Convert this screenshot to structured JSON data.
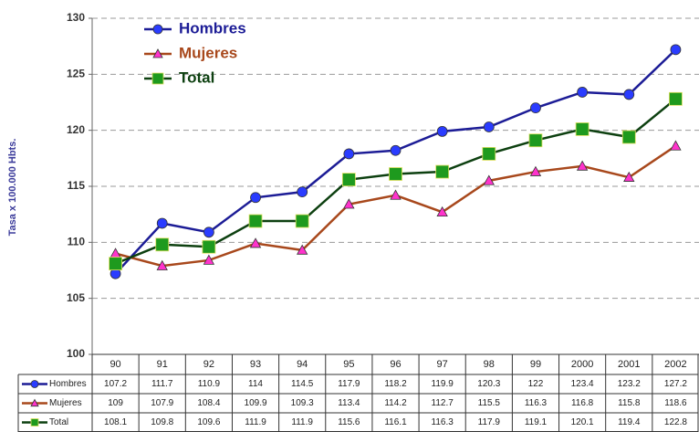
{
  "chart_data": {
    "type": "line",
    "y_axis_label": "Tasa x 100.000 Hbts.",
    "categories": [
      "90",
      "91",
      "92",
      "93",
      "94",
      "95",
      "96",
      "97",
      "98",
      "99",
      "2000",
      "2001",
      "2002"
    ],
    "series": [
      {
        "name": "Hombres",
        "color": "#1c1c96",
        "marker": "circle",
        "marker_color": "#2a3cff",
        "values": [
          107.2,
          111.7,
          110.9,
          114,
          114.5,
          117.9,
          118.2,
          119.9,
          120.3,
          122,
          123.4,
          123.2,
          127.2
        ]
      },
      {
        "name": "Mujeres",
        "color": "#a8481c",
        "marker": "triangle",
        "marker_color": "#ff33cc",
        "values": [
          109,
          107.9,
          108.4,
          109.9,
          109.3,
          113.4,
          114.2,
          112.7,
          115.5,
          116.3,
          116.8,
          115.8,
          118.6
        ]
      },
      {
        "name": "Total",
        "color": "#0d4010",
        "marker": "square",
        "marker_color": "#1e9a1e",
        "values": [
          108.1,
          109.8,
          109.6,
          111.9,
          111.9,
          115.6,
          116.1,
          116.3,
          117.9,
          119.1,
          120.1,
          119.4,
          122.8
        ]
      }
    ],
    "ylim": [
      100,
      130
    ],
    "yticks": [
      100,
      105,
      110,
      115,
      120,
      125,
      130
    ],
    "grid": true,
    "legend": "top-left"
  }
}
